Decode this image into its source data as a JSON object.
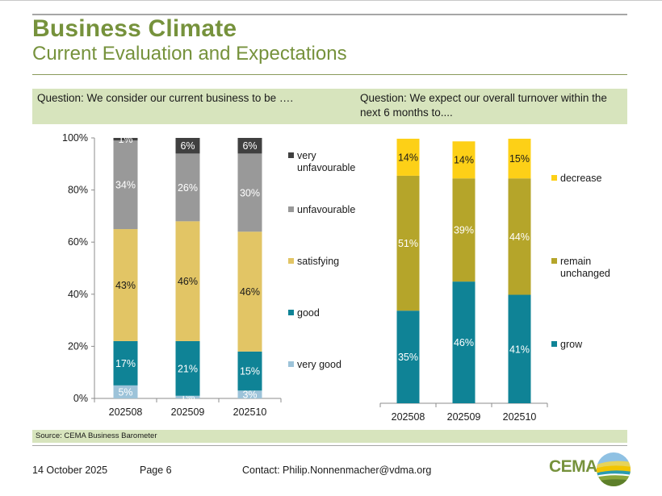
{
  "header": {
    "title": "Business Climate",
    "subtitle": "Current Evaluation and Expectations"
  },
  "questions": {
    "left": "Question: We consider our current business to be ….",
    "right": "Question: We expect our overall turnover within the next 6 months to...."
  },
  "chart_data": [
    {
      "type": "bar",
      "stacked": true,
      "title": "Question: We consider our current business to be ….",
      "categories": [
        "202508",
        "202509",
        "202510"
      ],
      "xlabel": "",
      "ylabel": "",
      "ylim": [
        0,
        100
      ],
      "yticks": [
        "0%",
        "20%",
        "40%",
        "60%",
        "80%",
        "100%"
      ],
      "legend_position": "right",
      "series": [
        {
          "name": "very good",
          "color": "#9dc3d9",
          "values": [
            5,
            1,
            3
          ],
          "labels": [
            "5%",
            "1%",
            "3%"
          ]
        },
        {
          "name": "good",
          "color": "#0f8396",
          "values": [
            17,
            21,
            15
          ],
          "labels": [
            "17%",
            "21%",
            "15%"
          ]
        },
        {
          "name": "satisfying",
          "color": "#e2c565",
          "values": [
            43,
            46,
            46
          ],
          "labels": [
            "43%",
            "46%",
            "46%"
          ]
        },
        {
          "name": "unfavourable",
          "color": "#999999",
          "values": [
            34,
            26,
            30
          ],
          "labels": [
            "34%",
            "26%",
            "30%"
          ]
        },
        {
          "name": "very unfavourable",
          "color": "#404040",
          "values": [
            1,
            6,
            6
          ],
          "labels": [
            "1%",
            "6%",
            "6%"
          ]
        }
      ]
    },
    {
      "type": "bar",
      "stacked": true,
      "title": "Question: We expect our overall turnover within the next 6 months to....",
      "categories": [
        "202508",
        "202509",
        "202510"
      ],
      "xlabel": "",
      "ylabel": "",
      "ylim": [
        0,
        100
      ],
      "legend_position": "right",
      "series": [
        {
          "name": "grow",
          "color": "#0f8396",
          "values": [
            35,
            46,
            41
          ],
          "labels": [
            "35%",
            "46%",
            "41%"
          ]
        },
        {
          "name": "remain unchanged",
          "color": "#b5a52a",
          "values": [
            51,
            39,
            44
          ],
          "labels": [
            "51%",
            "39%",
            "44%"
          ]
        },
        {
          "name": "decrease",
          "color": "#fdd017",
          "values": [
            14,
            14,
            15
          ],
          "labels": [
            "14%",
            "14%",
            "15%"
          ]
        }
      ]
    }
  ],
  "source": "Source: CEMA Business Barometer",
  "footer": {
    "date": "14 October 2025",
    "page": "Page 6",
    "contact": "Contact: Philip.Nonnenmacher@vdma.org",
    "logo_text": "CEMA"
  }
}
